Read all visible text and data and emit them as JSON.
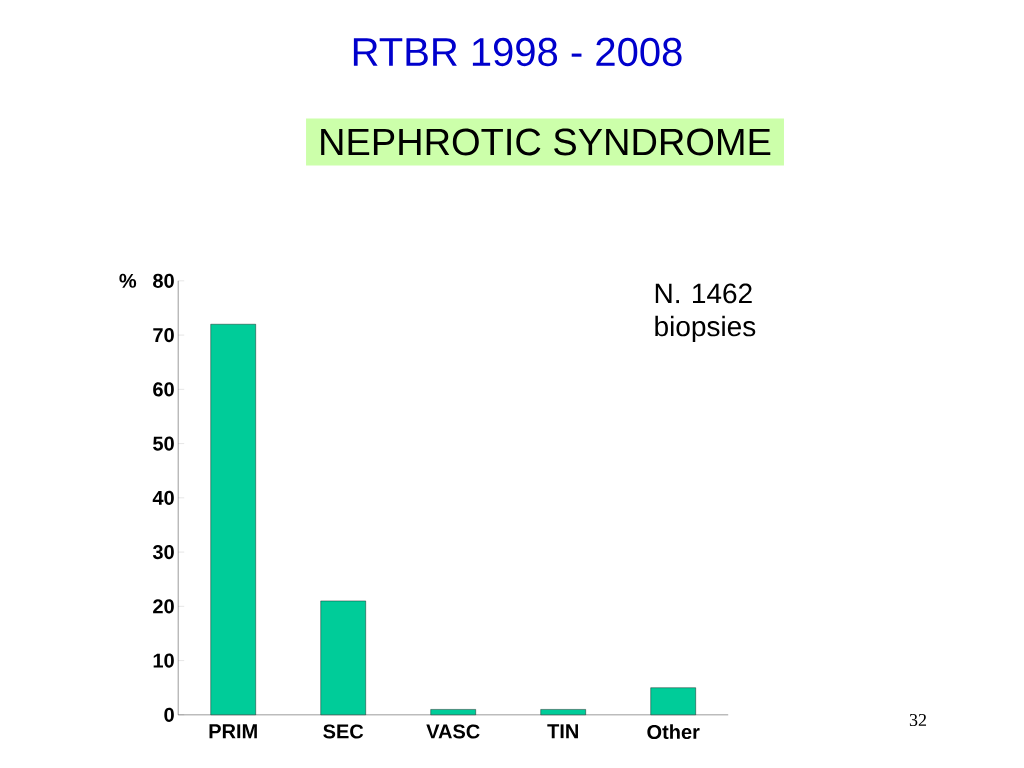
{
  "chart_data": {
    "type": "bar",
    "title": "RTBR 1998 - 2008",
    "subtitle": "NEPHROTIC SYNDROME",
    "ylabel": "%",
    "categories": [
      "PRIM",
      "SEC",
      "VASC",
      "TIN",
      "Other"
    ],
    "values": [
      72,
      21,
      1,
      1,
      5
    ],
    "color": "#00cc99",
    "ylim": [
      0,
      80
    ],
    "yticks": [
      0,
      10,
      20,
      30,
      40,
      50,
      60,
      70,
      80
    ],
    "annotations": [
      "N. 1462 biopsies",
      "32"
    ]
  }
}
